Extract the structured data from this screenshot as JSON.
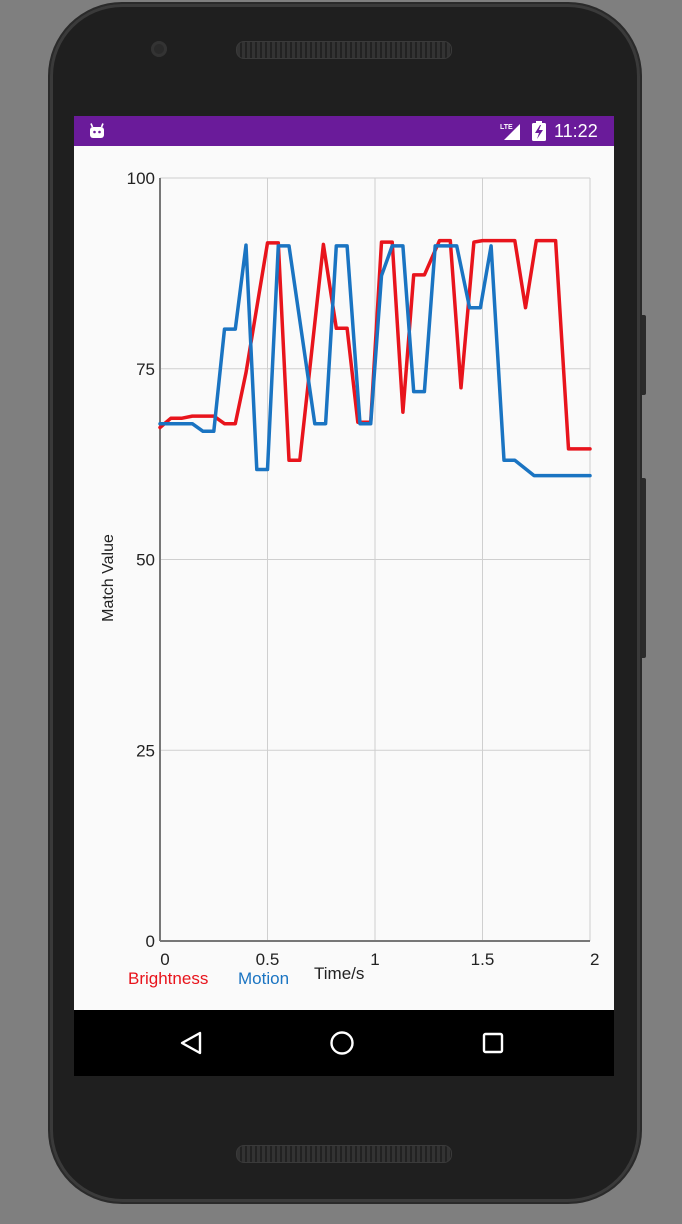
{
  "status_bar": {
    "time": "11:22",
    "network": "LTE",
    "notification_icon": "android-icon",
    "battery_icon": "battery-charging-icon",
    "color": "#6a1b9a"
  },
  "nav_bar": {
    "back_icon": "back-triangle-icon",
    "home_icon": "home-circle-icon",
    "recents_icon": "recents-square-icon"
  },
  "chart_data": {
    "type": "line",
    "title": "",
    "xlabel": "Time/s",
    "ylabel": "Match Value",
    "xlim": [
      0,
      2
    ],
    "ylim": [
      0,
      100
    ],
    "x_ticks": [
      "0",
      "0.5",
      "1",
      "1.5",
      "2"
    ],
    "y_ticks": [
      "0",
      "25",
      "50",
      "75",
      "100"
    ],
    "grid": true,
    "legend": "bottom-left",
    "series": [
      {
        "name": "Brightness",
        "color": "#e8141c",
        "points": [
          [
            0,
            67.3
          ],
          [
            0.05,
            68.5
          ],
          [
            0.1,
            68.5
          ],
          [
            0.15,
            68.8
          ],
          [
            0.2,
            68.8
          ],
          [
            0.25,
            68.8
          ],
          [
            0.3,
            67.8
          ],
          [
            0.35,
            67.8
          ],
          [
            0.4,
            74.5
          ],
          [
            0.5,
            91.5
          ],
          [
            0.55,
            91.5
          ],
          [
            0.6,
            63.0
          ],
          [
            0.65,
            63.0
          ],
          [
            0.76,
            91.3
          ],
          [
            0.82,
            80.3
          ],
          [
            0.87,
            80.3
          ],
          [
            0.92,
            68.0
          ],
          [
            0.98,
            68.0
          ],
          [
            1.03,
            91.6
          ],
          [
            1.08,
            91.6
          ],
          [
            1.13,
            69.3
          ],
          [
            1.18,
            87.3
          ],
          [
            1.23,
            87.3
          ],
          [
            1.3,
            91.8
          ],
          [
            1.35,
            91.8
          ],
          [
            1.4,
            72.5
          ],
          [
            1.46,
            91.6
          ],
          [
            1.5,
            91.8
          ],
          [
            1.55,
            91.8
          ],
          [
            1.6,
            91.8
          ],
          [
            1.65,
            91.8
          ],
          [
            1.7,
            83.0
          ],
          [
            1.75,
            91.8
          ],
          [
            1.8,
            91.8
          ],
          [
            1.84,
            91.8
          ],
          [
            1.9,
            64.5
          ],
          [
            2,
            64.5
          ]
        ]
      },
      {
        "name": "Motion",
        "color": "#1a74c2",
        "points": [
          [
            0,
            67.8
          ],
          [
            0.05,
            67.8
          ],
          [
            0.1,
            67.8
          ],
          [
            0.15,
            67.8
          ],
          [
            0.2,
            66.8
          ],
          [
            0.25,
            66.8
          ],
          [
            0.3,
            80.2
          ],
          [
            0.35,
            80.2
          ],
          [
            0.4,
            91.2
          ],
          [
            0.45,
            61.8
          ],
          [
            0.5,
            61.8
          ],
          [
            0.55,
            91.1
          ],
          [
            0.6,
            91.1
          ],
          [
            0.72,
            67.8
          ],
          [
            0.77,
            67.8
          ],
          [
            0.82,
            91.1
          ],
          [
            0.87,
            91.1
          ],
          [
            0.93,
            67.8
          ],
          [
            0.98,
            67.8
          ],
          [
            1.03,
            87.2
          ],
          [
            1.08,
            91.1
          ],
          [
            1.13,
            91.1
          ],
          [
            1.18,
            72.0
          ],
          [
            1.23,
            72.0
          ],
          [
            1.28,
            91.1
          ],
          [
            1.33,
            91.1
          ],
          [
            1.38,
            91.1
          ],
          [
            1.44,
            83.0
          ],
          [
            1.49,
            83.0
          ],
          [
            1.54,
            91.1
          ],
          [
            1.6,
            63.0
          ],
          [
            1.65,
            63.0
          ],
          [
            1.74,
            61.0
          ],
          [
            2,
            61.0
          ]
        ]
      }
    ]
  }
}
